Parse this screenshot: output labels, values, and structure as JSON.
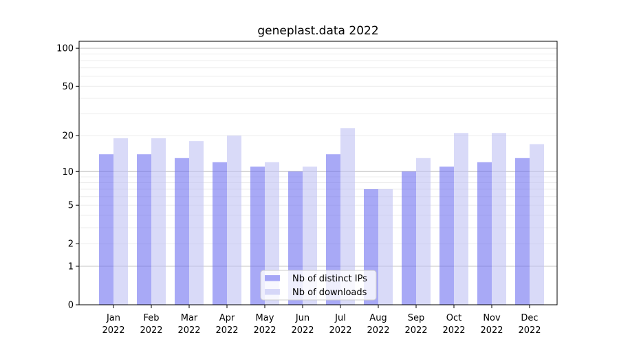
{
  "chart_data": {
    "type": "bar",
    "title": "geneplast.data 2022",
    "categories": [
      "Jan",
      "Feb",
      "Mar",
      "Apr",
      "May",
      "Jun",
      "Jul",
      "Aug",
      "Sep",
      "Oct",
      "Nov",
      "Dec"
    ],
    "category_year_label": "2022",
    "series": [
      {
        "name": "Nb of distinct IPs",
        "color": "rgba(110,112,240,0.6)",
        "color_hex": "#a9aaf3",
        "values": [
          14,
          14,
          13,
          12,
          11,
          10,
          14,
          7,
          10,
          11,
          12,
          13
        ]
      },
      {
        "name": "Nb of downloads",
        "color": "rgba(192,193,243,0.6)",
        "color_hex": "#d9daf8",
        "values": [
          19,
          19,
          18,
          20,
          12,
          11,
          23,
          7,
          13,
          21,
          21,
          17
        ]
      }
    ],
    "yscale": "log1p",
    "yticks": [
      100,
      50,
      20,
      10,
      5,
      2,
      1,
      0
    ],
    "ylim": [
      0,
      113.5
    ],
    "xlabel": "",
    "ylabel": "",
    "grid": "horizontal, minor + major decade lines",
    "legend_position": "lower center inside axes",
    "colors": {
      "grid_minor": "#ececec",
      "grid_major": "#c4c4c4",
      "spine": "#000000",
      "text": "#000000",
      "legend_border": "#cccccc",
      "legend_bg": "rgba(255,255,255,0.8)"
    }
  }
}
